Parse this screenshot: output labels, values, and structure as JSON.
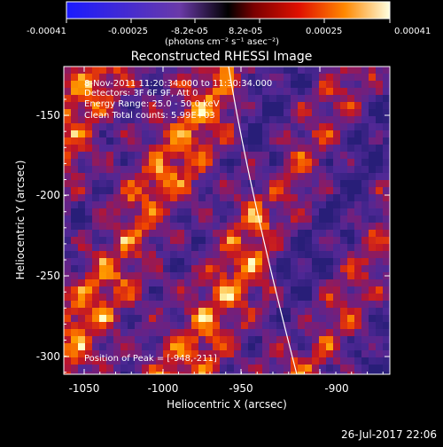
{
  "colorbar": {
    "tick_labels": [
      "-0.00041",
      "-0.00025",
      "-8.2e-05",
      "8.2e-05",
      "0.00025",
      "0.00041"
    ],
    "units_label": "(photons cm⁻² s⁻¹ asec⁻²)"
  },
  "plot": {
    "title": "Reconstructed RHESSI Image",
    "xlabel": "Heliocentric X (arcsec)",
    "ylabel": "Heliocentric Y (arcsec)",
    "x_ticks": [
      "-1050",
      "-1000",
      "-950",
      "-900"
    ],
    "y_ticks": [
      "-150",
      "-200",
      "-250",
      "-300"
    ],
    "xlim": [
      -1075,
      -865
    ],
    "ylim": [
      -315,
      -120
    ]
  },
  "annotations": {
    "time_range": "8-Nov-2011 11:20:34.000 to 11:30:34.000",
    "detectors": "Detectors: 3F 6F 9F, Att 0",
    "energy_range": "Energy Range: 25.0 - 50.0 keV",
    "clean_counts": "Clean    Total counts: 5.99E+03",
    "peak_position": "Position of Peak = [-948,-211]"
  },
  "footer": {
    "date": "26-Jul-2017 22:06"
  }
}
